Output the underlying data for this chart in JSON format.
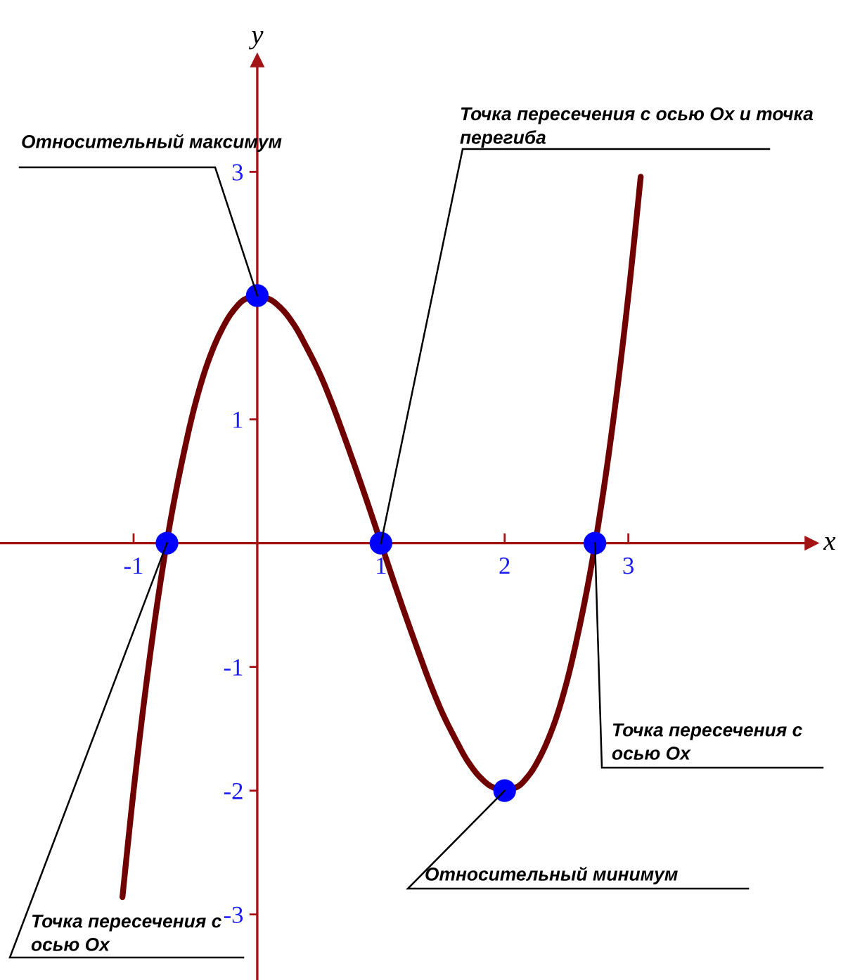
{
  "chart_data": {
    "type": "line",
    "xlabel": "x",
    "ylabel": "y",
    "xlim": [
      -2.08,
      4.48
    ],
    "ylim": [
      -3.53,
      3.9
    ],
    "xticks": [
      -1,
      1,
      2,
      3
    ],
    "yticks": [
      -3,
      -2,
      -1,
      1,
      {
        "value": 2,
        "label": null
      },
      3
    ],
    "series": [
      {
        "color": "#700000",
        "x": [
          -1.09,
          -1.05,
          -1.0,
          -0.9,
          -0.8,
          -0.7,
          -0.6,
          -0.5,
          -0.4,
          -0.3,
          -0.2,
          -0.1,
          0,
          0.1,
          0.2,
          0.3,
          0.4,
          0.5,
          0.6,
          0.7,
          0.8,
          0.9,
          1.0,
          1.1,
          1.2,
          1.3,
          1.4,
          1.5,
          1.6,
          1.7,
          1.8,
          1.9,
          2.0,
          2.1,
          2.2,
          2.3,
          2.4,
          2.5,
          2.6,
          2.7,
          2.8,
          2.9,
          3.0,
          3.05,
          3.1
        ],
        "values": [
          -2.86,
          -2.47,
          -2.0,
          -1.16,
          -0.43,
          0.19,
          0.7,
          1.13,
          1.46,
          1.7,
          1.87,
          1.97,
          2.0,
          1.97,
          1.89,
          1.76,
          1.58,
          1.38,
          1.14,
          0.87,
          0.59,
          0.3,
          0.0,
          -0.3,
          -0.59,
          -0.87,
          -1.14,
          -1.38,
          -1.58,
          -1.76,
          -1.89,
          -1.97,
          -2.0,
          -1.97,
          -1.87,
          -1.7,
          -1.46,
          -1.13,
          -0.7,
          -0.19,
          0.43,
          1.16,
          2.0,
          2.47,
          2.96
        ]
      },
      {
        "type": "scatter",
        "color": "#0000ff",
        "marker": "circle",
        "x": [
          -0.73,
          0,
          1,
          2,
          2.73
        ],
        "values": [
          0,
          2,
          0,
          -2,
          0
        ]
      }
    ],
    "annotations": [
      {
        "text": "Относительный максимум",
        "x": 0,
        "y": 2
      },
      {
        "text": "Точка пересечения с осью Ox и точка\nперегиба",
        "x": 1,
        "y": 0
      },
      {
        "text": "Точка пересечения с\nосью Ox",
        "x": -0.73,
        "y": 0
      },
      {
        "text": "Точка пересечения с\nосью Ox",
        "x": 2.73,
        "y": 0
      },
      {
        "text": "Относительный минимум",
        "x": 2,
        "y": -2
      }
    ]
  }
}
